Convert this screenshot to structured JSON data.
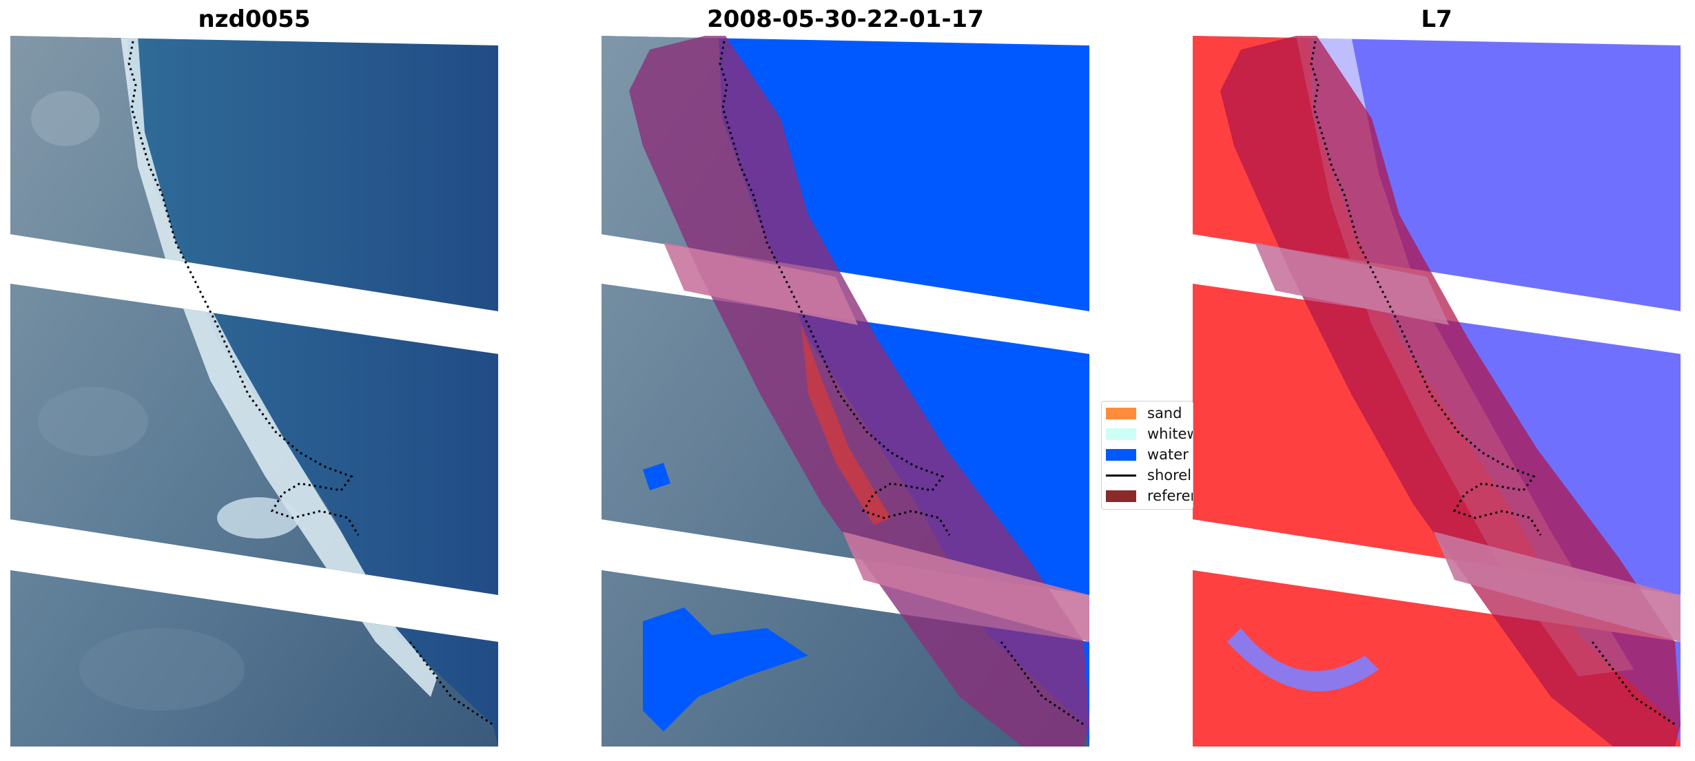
{
  "panels": [
    {
      "title": "nzd0055"
    },
    {
      "title": "2008-05-30-22-01-17"
    },
    {
      "title": "L7"
    }
  ],
  "legend": {
    "items": [
      {
        "label": "sand",
        "color": "#ff8c3a"
      },
      {
        "label": "whitew",
        "color": "#ccfff6"
      },
      {
        "label": "water",
        "color": "#0059ff"
      },
      {
        "label": "shorel",
        "color": "#000000"
      },
      {
        "label": "referen",
        "color": "#8b2a2a"
      }
    ]
  },
  "colors": {
    "water_dark": "#2a4f86",
    "land": "#4a6a8e",
    "surf": "#cfe4ee",
    "classified_water": "#0059ff",
    "reference_buffer": "#6b1f7a",
    "index_red": "#ff3a3a",
    "index_blue": "#6a6aff"
  }
}
